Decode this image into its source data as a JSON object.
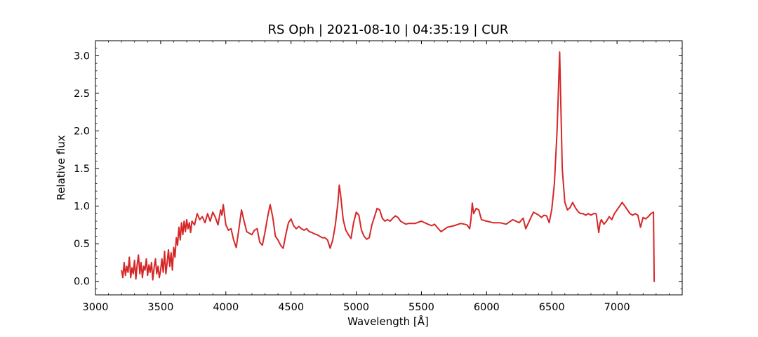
{
  "chart_data": {
    "type": "line",
    "title": "RS Oph | 2021-08-10 | 04:35:19 | CUR",
    "xlabel": "Wavelength [Å]",
    "ylabel": "Relative flux",
    "xlim": [
      3000,
      7500
    ],
    "ylim": [
      -0.18,
      3.2
    ],
    "x_ticks": [
      3000,
      3500,
      4000,
      4500,
      5000,
      5500,
      6000,
      6500,
      7000
    ],
    "x_tick_labels": [
      "3000",
      "3500",
      "4000",
      "4500",
      "5000",
      "5500",
      "6000",
      "6500",
      "7000"
    ],
    "y_ticks": [
      0.0,
      0.5,
      1.0,
      1.5,
      2.0,
      2.5,
      3.0
    ],
    "y_tick_labels": [
      "0.0",
      "0.5",
      "1.0",
      "1.5",
      "2.0",
      "2.5",
      "3.0"
    ],
    "grid": false,
    "legend": "none",
    "colors": {
      "series": "#d62728"
    },
    "series": [
      {
        "x": [
          3200,
          3210,
          3220,
          3230,
          3240,
          3250,
          3260,
          3270,
          3280,
          3290,
          3300,
          3310,
          3320,
          3330,
          3340,
          3350,
          3360,
          3370,
          3380,
          3390,
          3400,
          3410,
          3420,
          3430,
          3440,
          3450,
          3460,
          3470,
          3480,
          3490,
          3500,
          3510,
          3520,
          3530,
          3540,
          3550,
          3560,
          3570,
          3580,
          3590,
          3600,
          3610,
          3620,
          3630,
          3640,
          3650,
          3660,
          3670,
          3680,
          3690,
          3700,
          3710,
          3720,
          3730,
          3740,
          3760,
          3780,
          3800,
          3820,
          3840,
          3860,
          3880,
          3900,
          3920,
          3940,
          3960,
          3970,
          3980,
          4000,
          4020,
          4040,
          4060,
          4080,
          4100,
          4120,
          4140,
          4160,
          4180,
          4200,
          4220,
          4240,
          4260,
          4280,
          4300,
          4320,
          4340,
          4360,
          4380,
          4400,
          4420,
          4440,
          4460,
          4480,
          4500,
          4520,
          4540,
          4560,
          4580,
          4600,
          4620,
          4640,
          4660,
          4680,
          4700,
          4720,
          4740,
          4760,
          4780,
          4800,
          4820,
          4840,
          4860,
          4870,
          4880,
          4900,
          4920,
          4940,
          4960,
          4980,
          5000,
          5020,
          5040,
          5060,
          5080,
          5100,
          5120,
          5140,
          5160,
          5180,
          5200,
          5220,
          5240,
          5260,
          5280,
          5300,
          5320,
          5340,
          5360,
          5380,
          5400,
          5450,
          5500,
          5550,
          5580,
          5600,
          5650,
          5700,
          5750,
          5800,
          5830,
          5850,
          5870,
          5880,
          5890,
          5900,
          5920,
          5940,
          5960,
          6000,
          6050,
          6100,
          6150,
          6200,
          6250,
          6280,
          6300,
          6340,
          6360,
          6400,
          6420,
          6440,
          6460,
          6480,
          6500,
          6520,
          6540,
          6550,
          6560,
          6570,
          6580,
          6600,
          6620,
          6640,
          6660,
          6680,
          6700,
          6720,
          6740,
          6760,
          6780,
          6800,
          6820,
          6840,
          6860,
          6870,
          6880,
          6900,
          6920,
          6940,
          6960,
          6980,
          7000,
          7040,
          7060,
          7080,
          7100,
          7120,
          7140,
          7160,
          7180,
          7200,
          7220,
          7240,
          7260,
          7280,
          7285,
          7290
        ],
        "y": [
          0.15,
          0.05,
          0.25,
          0.08,
          0.2,
          0.12,
          0.32,
          0.05,
          0.18,
          0.1,
          0.28,
          0.03,
          0.22,
          0.35,
          0.1,
          0.25,
          0.05,
          0.2,
          0.15,
          0.3,
          0.08,
          0.22,
          0.12,
          0.25,
          0.02,
          0.18,
          0.3,
          0.1,
          0.2,
          0.05,
          0.15,
          0.3,
          0.12,
          0.4,
          0.1,
          0.25,
          0.42,
          0.2,
          0.38,
          0.15,
          0.45,
          0.32,
          0.58,
          0.48,
          0.72,
          0.55,
          0.78,
          0.62,
          0.8,
          0.66,
          0.82,
          0.7,
          0.78,
          0.65,
          0.8,
          0.75,
          0.9,
          0.82,
          0.86,
          0.78,
          0.9,
          0.8,
          0.92,
          0.85,
          0.75,
          0.95,
          0.88,
          1.02,
          0.75,
          0.68,
          0.7,
          0.55,
          0.45,
          0.7,
          0.95,
          0.8,
          0.66,
          0.64,
          0.62,
          0.68,
          0.7,
          0.52,
          0.48,
          0.65,
          0.85,
          1.02,
          0.85,
          0.6,
          0.55,
          0.48,
          0.44,
          0.62,
          0.78,
          0.83,
          0.74,
          0.7,
          0.73,
          0.7,
          0.68,
          0.7,
          0.66,
          0.65,
          0.63,
          0.62,
          0.6,
          0.58,
          0.58,
          0.55,
          0.44,
          0.55,
          0.75,
          1.05,
          1.28,
          1.15,
          0.82,
          0.68,
          0.62,
          0.57,
          0.78,
          0.92,
          0.88,
          0.68,
          0.6,
          0.56,
          0.58,
          0.75,
          0.86,
          0.97,
          0.95,
          0.84,
          0.8,
          0.82,
          0.8,
          0.84,
          0.87,
          0.85,
          0.8,
          0.78,
          0.76,
          0.77,
          0.77,
          0.8,
          0.76,
          0.74,
          0.76,
          0.66,
          0.72,
          0.74,
          0.77,
          0.76,
          0.75,
          0.7,
          0.82,
          1.04,
          0.9,
          0.97,
          0.95,
          0.82,
          0.8,
          0.78,
          0.78,
          0.76,
          0.82,
          0.78,
          0.84,
          0.7,
          0.85,
          0.92,
          0.88,
          0.85,
          0.88,
          0.87,
          0.78,
          0.96,
          1.3,
          2.0,
          2.5,
          3.05,
          2.3,
          1.5,
          1.05,
          0.95,
          0.98,
          1.05,
          0.98,
          0.93,
          0.9,
          0.9,
          0.88,
          0.9,
          0.88,
          0.9,
          0.9,
          0.65,
          0.78,
          0.82,
          0.76,
          0.8,
          0.86,
          0.82,
          0.9,
          0.95,
          1.05,
          1.0,
          0.95,
          0.9,
          0.88,
          0.9,
          0.88,
          0.72,
          0.85,
          0.83,
          0.86,
          0.9,
          0.92,
          0.0,
          0.0
        ]
      }
    ]
  }
}
